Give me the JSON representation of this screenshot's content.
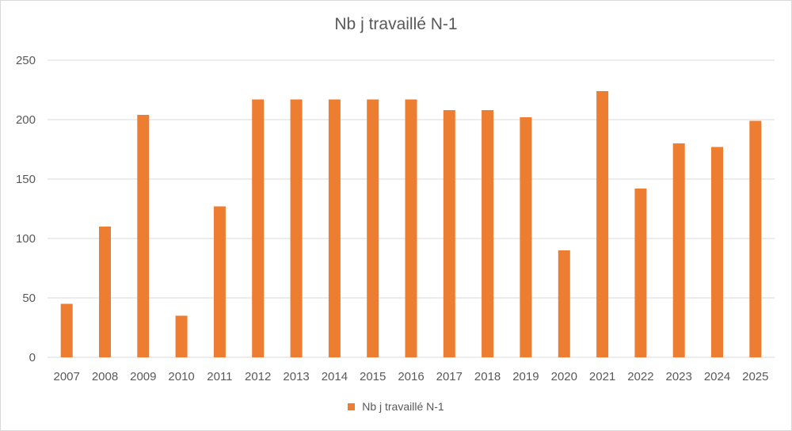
{
  "chart_data": {
    "type": "bar",
    "title": "Nb j travaillé N-1",
    "categories": [
      "2007",
      "2008",
      "2009",
      "2010",
      "2011",
      "2012",
      "2013",
      "2014",
      "2015",
      "2016",
      "2017",
      "2018",
      "2019",
      "2020",
      "2021",
      "2022",
      "2023",
      "2024",
      "2025"
    ],
    "series": [
      {
        "name": "Nb j travaillé N-1",
        "values": [
          45,
          110,
          204,
          35,
          127,
          217,
          217,
          217,
          217,
          217,
          208,
          208,
          202,
          90,
          224,
          142,
          180,
          177,
          199
        ],
        "color": "#ED7D31"
      }
    ],
    "ylim": [
      0,
      250
    ],
    "yticks": [
      0,
      50,
      100,
      150,
      200,
      250
    ],
    "grid": true,
    "legend_position": "bottom",
    "xlabel": "",
    "ylabel": ""
  }
}
